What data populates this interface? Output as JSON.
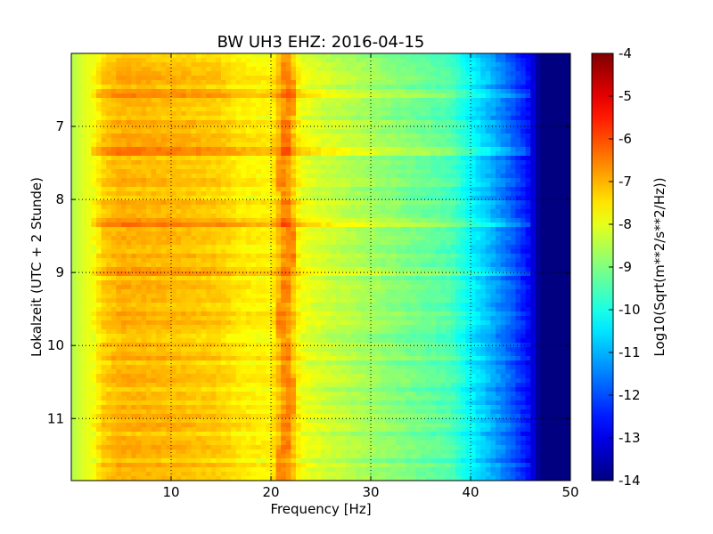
{
  "chart_data": {
    "type": "heatmap",
    "title": "BW UH3 EHZ: 2016-04-15",
    "xlabel": "Frequency [Hz]",
    "ylabel": "Lokalzeit (UTC + 2 Stunde)",
    "xlim": [
      0,
      50
    ],
    "ylim_inverted": [
      6.0,
      11.85
    ],
    "x_ticks": [
      "10",
      "20",
      "30",
      "40",
      "50"
    ],
    "y_ticks": [
      "7",
      "8",
      "9",
      "10",
      "11"
    ],
    "grid": true,
    "colormap": "jet",
    "colorbar": {
      "label": "Log10(Sqrt(m**2/s**2/Hz))",
      "min": -14,
      "max": -4,
      "ticks": [
        "-4",
        "-5",
        "-6",
        "-7",
        "-8",
        "-9",
        "-10",
        "-11",
        "-12",
        "-13",
        "-14"
      ]
    },
    "spectral_profile": {
      "frequency_hz": [
        0,
        0.5,
        1.5,
        2.5,
        3.0,
        5,
        10,
        15,
        17,
        20,
        21.5,
        23,
        25,
        30,
        35,
        38,
        40,
        42,
        44,
        46,
        47,
        50
      ],
      "log10_amplitude": [
        -8.6,
        -8.3,
        -8.0,
        -7.8,
        -7.3,
        -7.0,
        -7.1,
        -7.3,
        -7.6,
        -7.7,
        -6.6,
        -7.9,
        -8.2,
        -8.7,
        -9.2,
        -9.5,
        -10.3,
        -11.0,
        -11.8,
        -12.8,
        -14.0,
        -14.0
      ]
    },
    "features": {
      "narrowband_line_hz": 21.5,
      "strong_horizontal_bands_hours": [
        6.55,
        7.35,
        8.3,
        9.0
      ]
    }
  }
}
